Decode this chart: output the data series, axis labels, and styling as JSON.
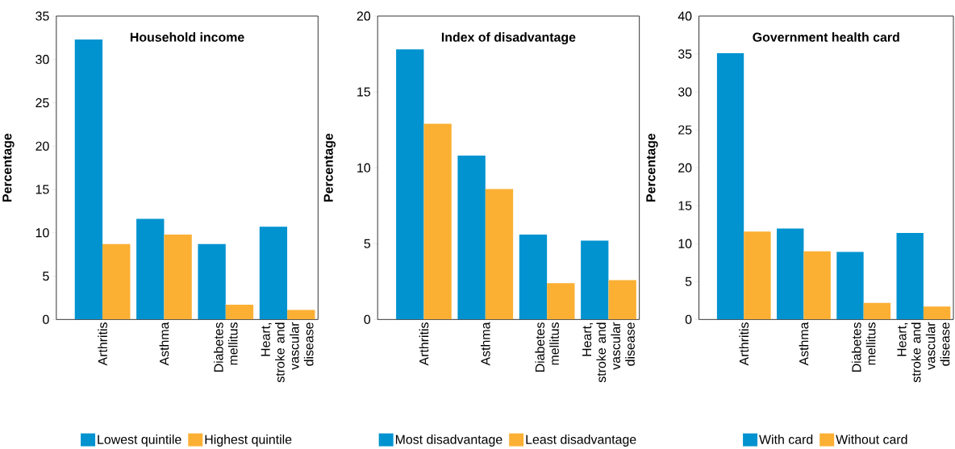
{
  "chart_data": [
    {
      "type": "bar",
      "title": "Household income",
      "ylabel": "Percentage",
      "categories": [
        "Arthritis",
        "Asthma",
        "Diabetes mellitus",
        "Heart, stroke and vascular disease"
      ],
      "ylim": [
        0,
        35
      ],
      "yticks": [
        0,
        5,
        10,
        15,
        20,
        25,
        30,
        35
      ],
      "legend": "bottom",
      "series": [
        {
          "name": "Lowest quintile",
          "color": "#0093d0",
          "values": [
            32.3,
            11.6,
            8.7,
            10.7
          ]
        },
        {
          "name": "Highest quintile",
          "color": "#fbb034",
          "values": [
            8.7,
            9.8,
            1.7,
            1.1
          ]
        }
      ]
    },
    {
      "type": "bar",
      "title": "Index of disadvantage",
      "ylabel": "Percentage",
      "categories": [
        "Arthritis",
        "Asthma",
        "Diabetes mellitus",
        "Heart, stroke and vascular disease"
      ],
      "ylim": [
        0,
        20
      ],
      "yticks": [
        0,
        5,
        10,
        15,
        20
      ],
      "legend": "bottom",
      "series": [
        {
          "name": "Most disadvantage",
          "color": "#0093d0",
          "values": [
            17.8,
            10.8,
            5.6,
            5.2
          ]
        },
        {
          "name": "Least disadvantage",
          "color": "#fbb034",
          "values": [
            12.9,
            8.6,
            2.4,
            2.6
          ]
        }
      ]
    },
    {
      "type": "bar",
      "title": "Government health card",
      "ylabel": "Percentage",
      "categories": [
        "Arthritis",
        "Asthma",
        "Diabetes mellitus",
        "Heart, stroke and vascular disease"
      ],
      "ylim": [
        0,
        40
      ],
      "yticks": [
        0,
        5,
        10,
        15,
        20,
        25,
        30,
        35,
        40
      ],
      "legend": "bottom",
      "series": [
        {
          "name": "With card",
          "color": "#0093d0",
          "values": [
            35.1,
            12.0,
            8.9,
            11.4
          ]
        },
        {
          "name": "Without card",
          "color": "#fbb034",
          "values": [
            11.6,
            9.0,
            2.2,
            1.7
          ]
        }
      ]
    }
  ]
}
